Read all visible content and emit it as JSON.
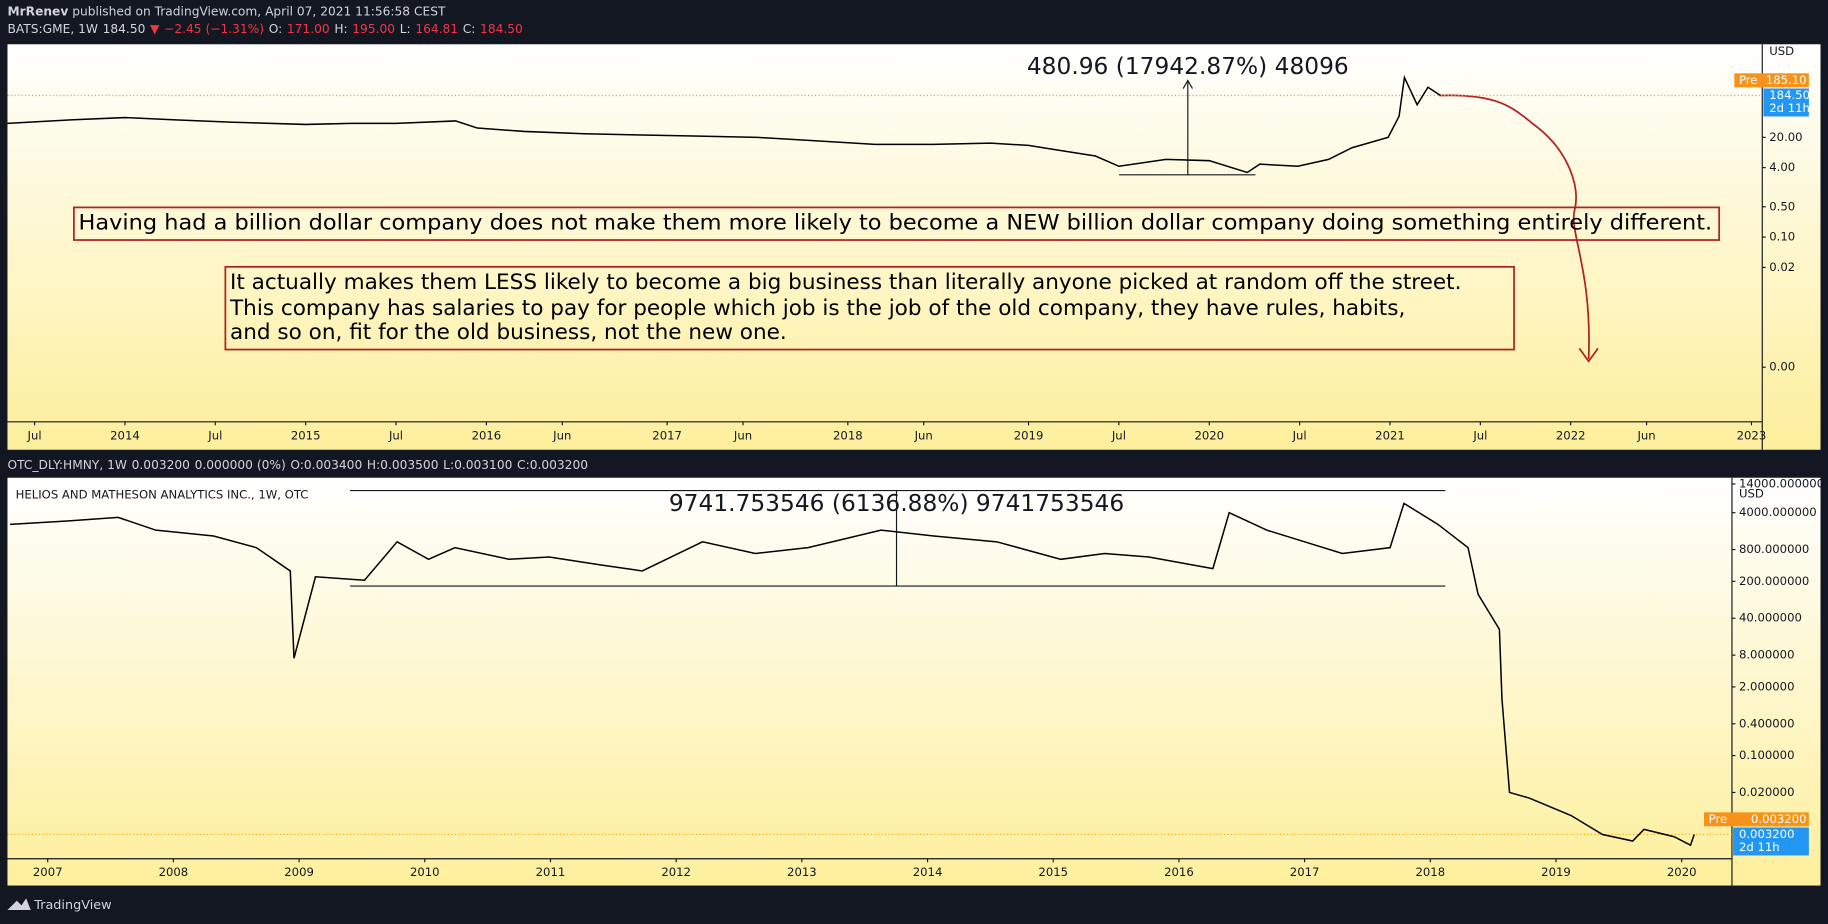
{
  "header": {
    "author": "MrRenev",
    "published": "published on TradingView.com, April 07, 2021 11:56:58 CEST"
  },
  "footer": "TradingView",
  "chart_data": [
    {
      "type": "line",
      "log_scale": true,
      "grid": false,
      "color": "#000000",
      "info": [
        {
          "text": "BATS:GME, 1W",
          "color": "#d1d4dc"
        },
        {
          "text": "184.50",
          "color": "#d1d4dc"
        },
        {
          "text": "▼",
          "color": "#f23645"
        },
        {
          "text": "−2.45 (−1.31%)",
          "color": "#f23645"
        },
        {
          "text": "O:",
          "color": "#d1d4dc"
        },
        {
          "text": "171.00",
          "color": "#f23645"
        },
        {
          "text": "H:",
          "color": "#d1d4dc"
        },
        {
          "text": "195.00",
          "color": "#f23645"
        },
        {
          "text": "L:",
          "color": "#d1d4dc"
        },
        {
          "text": "164.81",
          "color": "#f23645"
        },
        {
          "text": "C:",
          "color": "#d1d4dc"
        },
        {
          "text": "184.50",
          "color": "#f23645"
        }
      ],
      "measure_label": "480.96 (17942.87%) 48096",
      "notes": [
        [
          "Having had a billion dollar company does not make them more likely to become a NEW billion dollar company doing something entirely different."
        ],
        [
          "It actually makes them LESS likely to become a big business than literally anyone picked at random off the street.",
          "This company has salaries to pay for people which job is the job of the old company, they have rules, habits,",
          "and so on, fit for the old business, not the new one."
        ]
      ],
      "currency": "USD",
      "pre_text": "Pre",
      "pre_price": {
        "value": 185.1,
        "label": "185.10"
      },
      "last_price": {
        "value": 184.5,
        "label": "184.50"
      },
      "countdown": "2d 11h",
      "x": [
        2013.35,
        2013.7,
        2014.0,
        2014.28,
        2014.6,
        2015.0,
        2015.25,
        2015.5,
        2015.83,
        2015.95,
        2016.21,
        2016.54,
        2016.86,
        2017.18,
        2017.5,
        2017.83,
        2018.15,
        2018.47,
        2018.79,
        2019.0,
        2019.12,
        2019.37,
        2019.5,
        2019.76,
        2020.0,
        2020.21,
        2020.28,
        2020.49,
        2020.66,
        2020.79,
        2020.99,
        2021.05,
        2021.08,
        2021.15,
        2021.21,
        2021.28
      ],
      "values": [
        42,
        50.6,
        57.3,
        50.6,
        44.7,
        39.6,
        42,
        42,
        47.6,
        32.8,
        27.3,
        24.1,
        22.6,
        21.3,
        20,
        16.6,
        13.8,
        13.8,
        14.7,
        13,
        10.8,
        7.4,
        4.3,
        6.2,
        5.8,
        3.1,
        4.8,
        4.3,
        6.2,
        11.5,
        20,
        61,
        481,
        113,
        286,
        184.5
      ],
      "xlim": [
        2013.35,
        2023.06
      ],
      "xticks": [
        {
          "value": 2013.5,
          "label": "Jul"
        },
        2014,
        {
          "value": 2014.5,
          "label": "Jul"
        },
        2015,
        {
          "value": 2015.5,
          "label": "Jul"
        },
        2016,
        {
          "value": 2016.42,
          "label": "Jun"
        },
        2017,
        {
          "value": 2017.42,
          "label": "Jun"
        },
        2018,
        {
          "value": 2018.42,
          "label": "Jun"
        },
        2019,
        {
          "value": 2019.5,
          "label": "Jul"
        },
        2020,
        {
          "value": 2020.5,
          "label": "Jul"
        },
        2021,
        {
          "value": 2021.5,
          "label": "Jul"
        },
        2022,
        {
          "value": 2022.42,
          "label": "Jun"
        },
        2023
      ],
      "ylim": [
        5.5e-06,
        2800
      ],
      "yticks": [
        {
          "value": 20,
          "label": "20.00"
        },
        {
          "value": 4,
          "label": "4.00"
        },
        {
          "value": 0.5,
          "label": "0.50"
        },
        {
          "value": 0.1,
          "label": "0.10"
        },
        {
          "value": 0.02,
          "label": "0.02"
        },
        {
          "value": 0.0001,
          "label": "0.00"
        }
      ]
    },
    {
      "type": "line",
      "log_scale": true,
      "grid": false,
      "color": "#000000",
      "info": [
        {
          "text": "OTC_DLY:HMNY, 1W",
          "color": "#d1d4dc"
        },
        {
          "text": "0.003200",
          "color": "#d1d4dc"
        },
        {
          "text": "0.000000 (0%)",
          "color": "#d1d4dc"
        },
        {
          "text": "O:0.003400",
          "color": "#d1d4dc"
        },
        {
          "text": "H:0.003500",
          "color": "#d1d4dc"
        },
        {
          "text": "L:0.003100",
          "color": "#d1d4dc"
        },
        {
          "text": "C:0.003200",
          "color": "#d1d4dc"
        }
      ],
      "title": "HELIOS AND MATHESON ANALYTICS INC., 1W, OTC",
      "measure_label": "9741.753546 (6136.88%) 9741753546",
      "currency": "USD",
      "pre_text": "Pre",
      "pre_price": {
        "value": 0.0032,
        "label": "0.003200"
      },
      "last_price": {
        "value": 0.0032,
        "label": "0.003200"
      },
      "countdown": "2d 11h",
      "x": [
        2006.7,
        2007.17,
        2007.56,
        2007.86,
        2008.32,
        2008.66,
        2008.93,
        2008.96,
        2009.13,
        2009.52,
        2009.78,
        2010.03,
        2010.24,
        2010.67,
        2010.99,
        2011.41,
        2011.73,
        2012.21,
        2012.63,
        2013.05,
        2013.63,
        2014.05,
        2014.55,
        2015.06,
        2015.41,
        2015.76,
        2016.27,
        2016.4,
        2016.7,
        2017.0,
        2017.3,
        2017.68,
        2017.79,
        2018.06,
        2018.3,
        2018.38,
        2018.55,
        2018.57,
        2018.63,
        2018.79,
        2019.12,
        2019.37,
        2019.61,
        2019.7,
        2019.94,
        2020.07,
        2020.1
      ],
      "values": [
        2405,
        2800,
        3264,
        1867,
        1445,
        871,
        315,
        7,
        244,
        210,
        1122,
        524,
        871,
        524,
        580,
        406,
        315,
        1122,
        675,
        871,
        1867,
        1445,
        1122,
        524,
        675,
        580,
        349,
        4000,
        1867,
        1122,
        675,
        871,
        6010,
        2405,
        871,
        114,
        24.7,
        1.18,
        0.02,
        0.0156,
        0.0073,
        0.0032,
        0.0024,
        0.004,
        0.0029,
        0.002,
        0.0032
      ],
      "xlim": [
        2006.68,
        2020.4
      ],
      "xticks": [
        2007,
        2008,
        2009,
        2010,
        2011,
        2012,
        2013,
        2014,
        2015,
        2016,
        2017,
        2018,
        2019,
        2020
      ],
      "ylim": [
        0.00111,
        18370
      ],
      "yticks": [
        {
          "value": 14000,
          "label": "14000.000000"
        },
        {
          "value": 4000,
          "label": "4000.000000"
        },
        {
          "value": 800,
          "label": "800.000000"
        },
        {
          "value": 200,
          "label": "200.000000"
        },
        {
          "value": 40,
          "label": "40.000000"
        },
        {
          "value": 8,
          "label": "8.000000"
        },
        {
          "value": 2,
          "label": "2.000000"
        },
        {
          "value": 0.4,
          "label": "0.400000"
        },
        {
          "value": 0.1,
          "label": "0.100000"
        },
        {
          "value": 0.02,
          "label": "0.020000"
        }
      ]
    }
  ]
}
